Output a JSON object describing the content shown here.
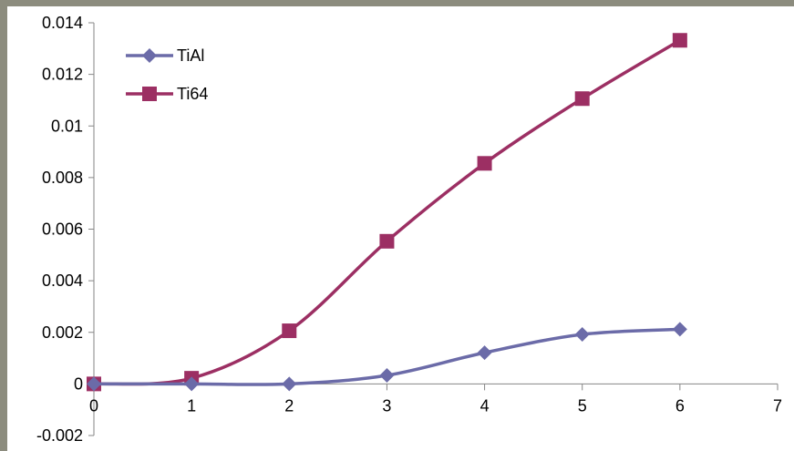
{
  "chart_data": {
    "type": "line",
    "title": "",
    "xlabel": "",
    "ylabel": "",
    "xlim": [
      0,
      7
    ],
    "ylim": [
      -0.002,
      0.014
    ],
    "x_ticks": [
      0,
      1,
      2,
      3,
      4,
      5,
      6,
      7
    ],
    "y_ticks": [
      -0.002,
      0,
      0.002,
      0.004,
      0.006,
      0.008,
      0.01,
      0.012,
      0.014
    ],
    "x_tick_labels": [
      "0",
      "1",
      "2",
      "3",
      "4",
      "5",
      "6",
      "7"
    ],
    "y_tick_labels": [
      "-0.002",
      "0",
      "0.002",
      "0.004",
      "0.006",
      "0.008",
      "0.01",
      "0.012",
      "0.014"
    ],
    "grid": false,
    "legend_position": "top-left",
    "series": [
      {
        "name": "TiAl",
        "color": "#6b6ba8",
        "marker": "diamond",
        "x": [
          0,
          1,
          2,
          3,
          4,
          5,
          6
        ],
        "values": [
          0,
          0,
          0,
          0.00033,
          0.00121,
          0.00192,
          0.00212
        ]
      },
      {
        "name": "Ti64",
        "color": "#9c2f63",
        "marker": "square",
        "x": [
          0,
          1,
          2,
          3,
          4,
          5,
          6
        ],
        "values": [
          0,
          0.00022,
          0.00206,
          0.00553,
          0.00855,
          0.01106,
          0.01332
        ]
      }
    ]
  }
}
